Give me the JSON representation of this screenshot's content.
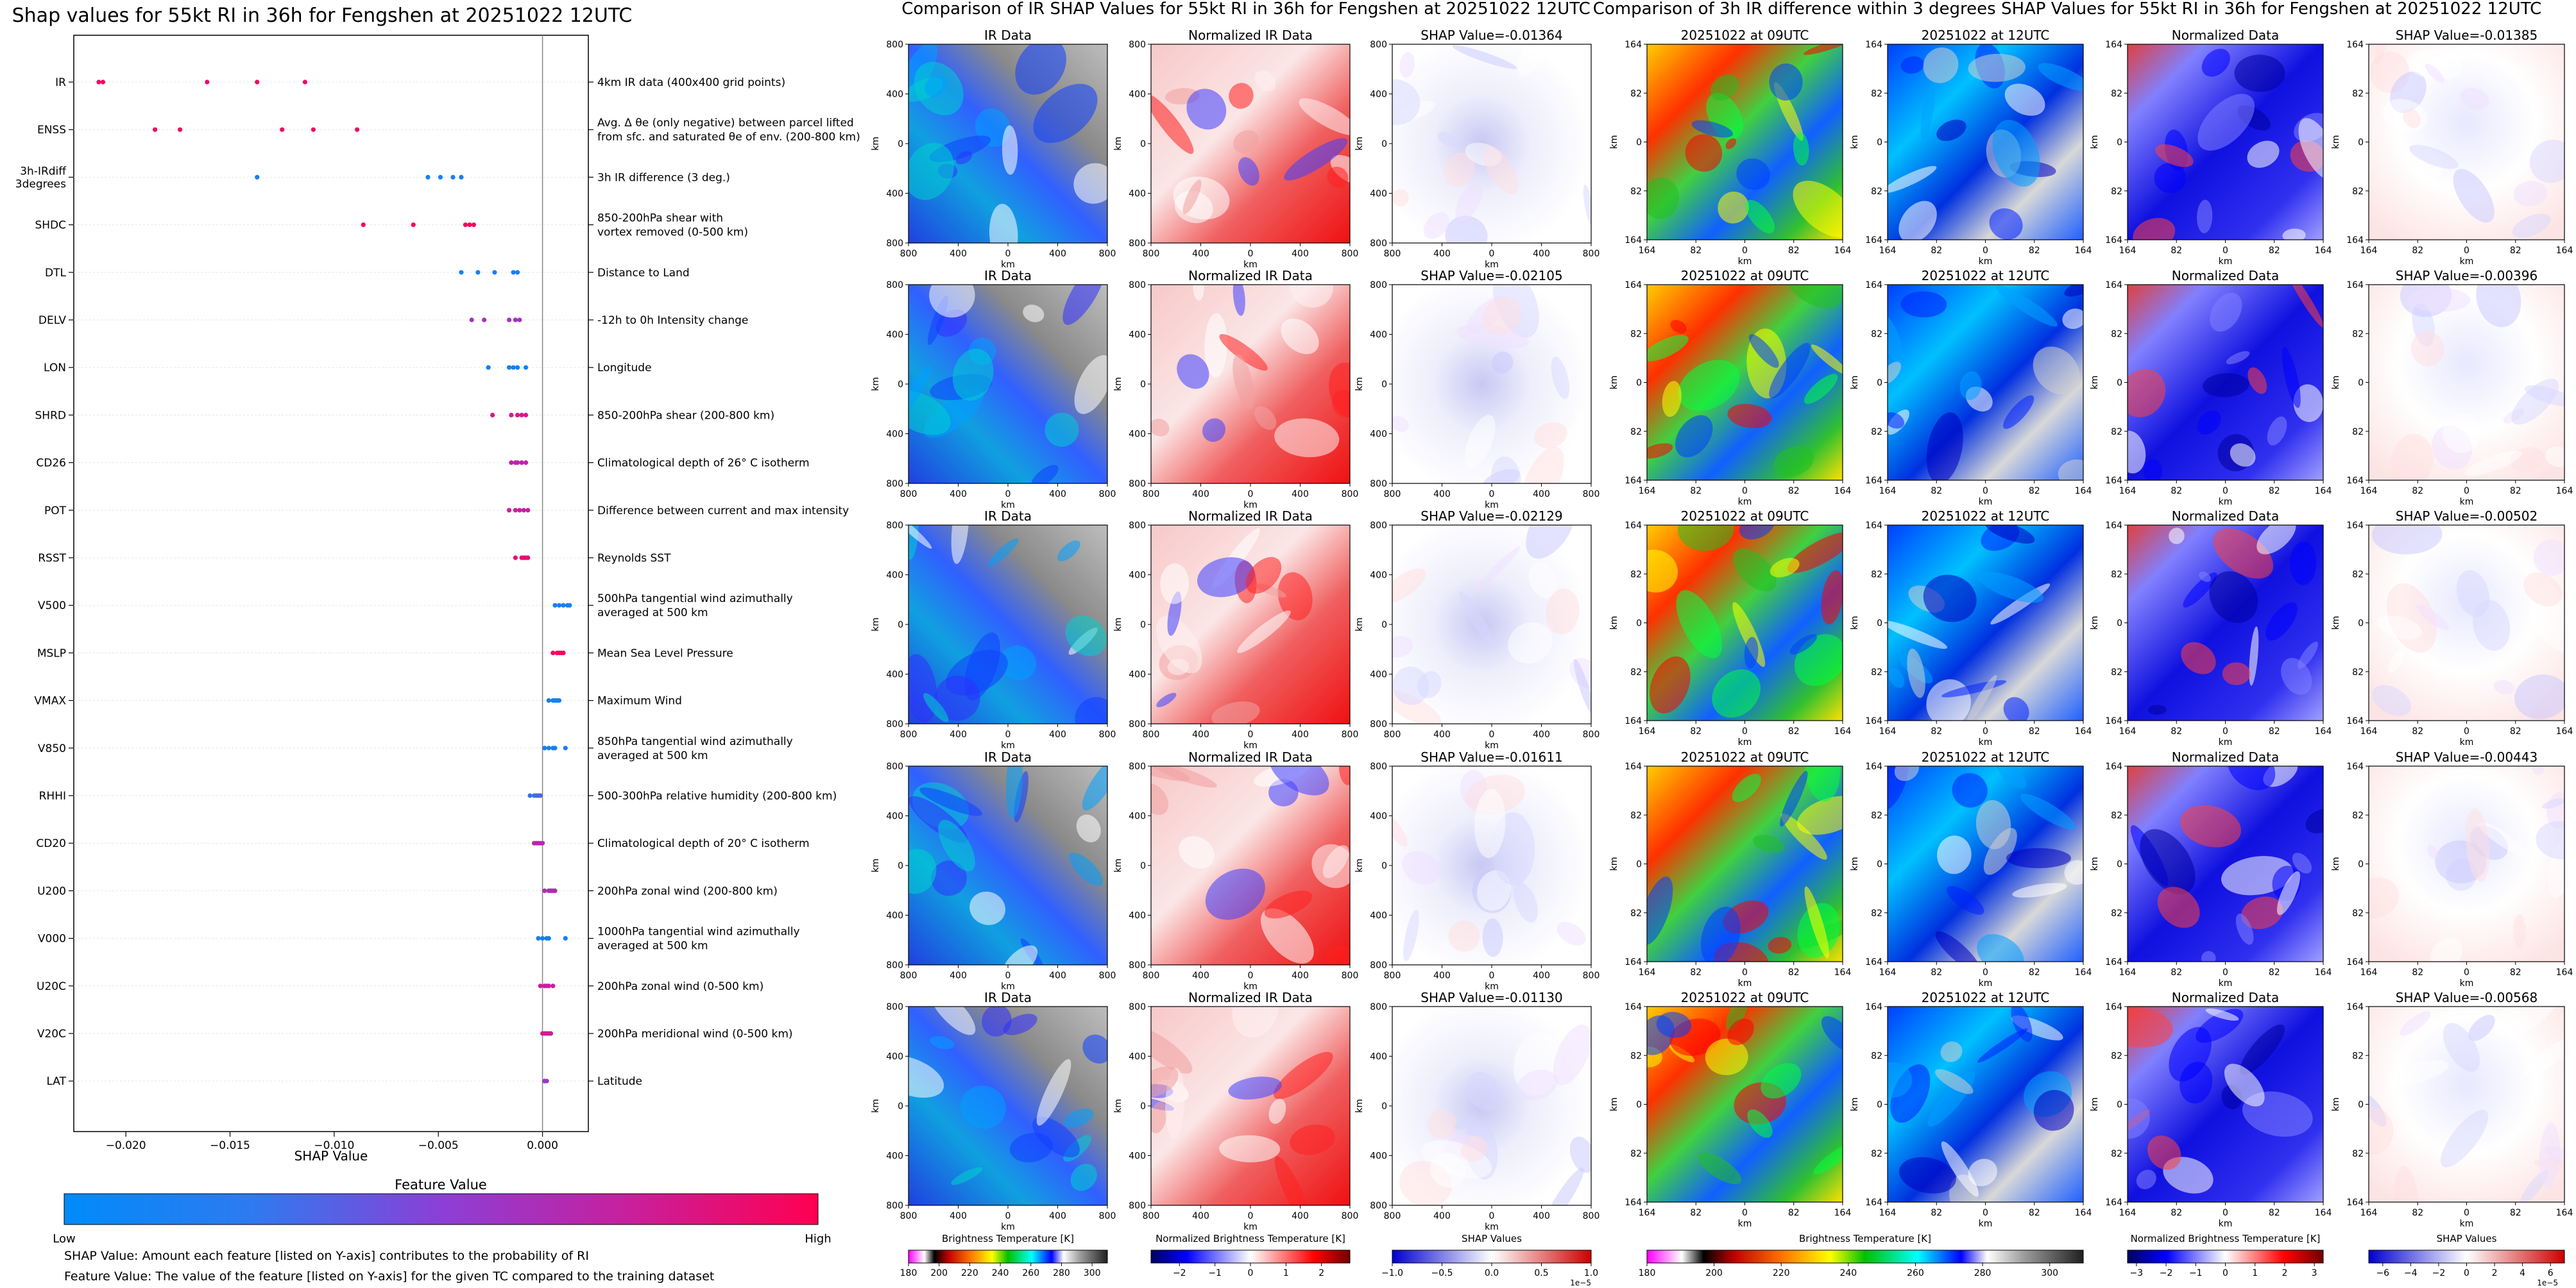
{
  "chart_data": [
    {
      "type": "scatter",
      "title": "Shap values for 55kt RI in 36h for Fengshen at 20251022 12UTC",
      "xlabel": "SHAP Value",
      "xlim": [
        -0.0225,
        0.0022
      ],
      "xticks": [
        {
          "v": -0.02,
          "label": "−0.020"
        },
        {
          "v": -0.015,
          "label": "−0.015"
        },
        {
          "v": -0.01,
          "label": "−0.010"
        },
        {
          "v": -0.005,
          "label": "−0.005"
        },
        {
          "v": 0.0,
          "label": "0.000"
        }
      ],
      "features": [
        {
          "name": "IR",
          "desc": [
            "4km IR data (400x400 grid points)"
          ],
          "points": [
            [
              -0.0213,
              0.95
            ],
            [
              -0.0211,
              0.95
            ],
            [
              -0.0161,
              0.92
            ],
            [
              -0.0137,
              0.95
            ],
            [
              -0.0114,
              0.95
            ]
          ]
        },
        {
          "name": "ENSS",
          "desc": [
            "Avg. Δ θe (only negative) between parcel lifted",
            "from sfc. and saturated θe of env. (200-800 km)"
          ],
          "points": [
            [
              -0.0186,
              0.95
            ],
            [
              -0.0174,
              0.95
            ],
            [
              -0.0125,
              0.95
            ],
            [
              -0.011,
              0.95
            ],
            [
              -0.0089,
              0.95
            ]
          ]
        },
        {
          "name": "3h-IRdiff 3degrees",
          "label_lines": [
            "3h-IRdiff",
            "3degrees"
          ],
          "desc": [
            "3h IR difference (3 deg.)"
          ],
          "points": [
            [
              -0.0137,
              0.1
            ],
            [
              -0.0055,
              0.1
            ],
            [
              -0.0049,
              0.1
            ],
            [
              -0.0043,
              0.1
            ],
            [
              -0.0039,
              0.1
            ]
          ]
        },
        {
          "name": "SHDC",
          "desc": [
            "850-200hPa shear with",
            "vortex removed (0-500 km)"
          ],
          "points": [
            [
              -0.0086,
              0.95
            ],
            [
              -0.0062,
              0.95
            ],
            [
              -0.0037,
              0.95
            ],
            [
              -0.0035,
              0.95
            ],
            [
              -0.0033,
              0.95
            ]
          ]
        },
        {
          "name": "DTL",
          "desc": [
            "Distance to Land"
          ],
          "points": [
            [
              -0.0039,
              0.1
            ],
            [
              -0.0031,
              0.1
            ],
            [
              -0.0023,
              0.1
            ],
            [
              -0.0014,
              0.1
            ],
            [
              -0.0012,
              0.1
            ]
          ]
        },
        {
          "name": "DELV",
          "desc": [
            "-12h to 0h Intensity change"
          ],
          "points": [
            [
              -0.0034,
              0.6
            ],
            [
              -0.0028,
              0.6
            ],
            [
              -0.0016,
              0.6
            ],
            [
              -0.0013,
              0.6
            ],
            [
              -0.0011,
              0.6
            ]
          ]
        },
        {
          "name": "LON",
          "desc": [
            "Longitude"
          ],
          "points": [
            [
              -0.0026,
              0.1
            ],
            [
              -0.0016,
              0.1
            ],
            [
              -0.0014,
              0.1
            ],
            [
              -0.0012,
              0.1
            ],
            [
              -0.0008,
              0.1
            ]
          ]
        },
        {
          "name": "SHRD",
          "desc": [
            "850-200hPa shear (200-800 km)"
          ],
          "points": [
            [
              -0.0024,
              0.85
            ],
            [
              -0.0015,
              0.8
            ],
            [
              -0.0012,
              0.8
            ],
            [
              -0.001,
              0.8
            ],
            [
              -0.0008,
              0.8
            ]
          ]
        },
        {
          "name": "CD26",
          "desc": [
            "Climatological depth of 26° C isotherm"
          ],
          "points": [
            [
              -0.0015,
              0.7
            ],
            [
              -0.0013,
              0.7
            ],
            [
              -0.0012,
              0.7
            ],
            [
              -0.001,
              0.7
            ],
            [
              -0.0008,
              0.7
            ]
          ]
        },
        {
          "name": "POT",
          "desc": [
            "Difference between current and max intensity"
          ],
          "points": [
            [
              -0.0016,
              0.75
            ],
            [
              -0.0013,
              0.75
            ],
            [
              -0.0011,
              0.75
            ],
            [
              -0.0009,
              0.75
            ],
            [
              -0.0007,
              0.75
            ]
          ]
        },
        {
          "name": "RSST",
          "desc": [
            "Reynolds SST"
          ],
          "points": [
            [
              -0.0013,
              0.9
            ],
            [
              -0.001,
              0.9
            ],
            [
              -0.0009,
              0.9
            ],
            [
              -0.0008,
              0.9
            ],
            [
              -0.0007,
              0.9
            ]
          ]
        },
        {
          "name": "V500",
          "desc": [
            "500hPa tangential wind azimuthally",
            "averaged at 500 km"
          ],
          "points": [
            [
              0.0006,
              0.1
            ],
            [
              0.0008,
              0.1
            ],
            [
              0.001,
              0.1
            ],
            [
              0.0012,
              0.1
            ],
            [
              0.0013,
              0.1
            ]
          ]
        },
        {
          "name": "MSLP",
          "desc": [
            "Mean Sea Level Pressure"
          ],
          "points": [
            [
              0.0005,
              0.95
            ],
            [
              0.0007,
              0.95
            ],
            [
              0.0008,
              0.95
            ],
            [
              0.0009,
              0.95
            ],
            [
              0.001,
              0.95
            ]
          ]
        },
        {
          "name": "VMAX",
          "desc": [
            "Maximum Wind"
          ],
          "points": [
            [
              0.0003,
              0.1
            ],
            [
              0.0005,
              0.1
            ],
            [
              0.0006,
              0.1
            ],
            [
              0.0007,
              0.1
            ],
            [
              0.0008,
              0.1
            ]
          ]
        },
        {
          "name": "V850",
          "desc": [
            "850hPa tangential wind azimuthally",
            "averaged at 500 km"
          ],
          "points": [
            [
              0.0001,
              0.1
            ],
            [
              0.0003,
              0.1
            ],
            [
              0.0005,
              0.1
            ],
            [
              0.0006,
              0.1
            ],
            [
              0.0011,
              0.1
            ]
          ]
        },
        {
          "name": "RHHI",
          "desc": [
            "500-300hPa relative humidity (200-800 km)"
          ],
          "points": [
            [
              -0.0006,
              0.2
            ],
            [
              -0.0004,
              0.2
            ],
            [
              -0.0003,
              0.3
            ],
            [
              -0.0002,
              0.3
            ],
            [
              -0.0001,
              0.3
            ]
          ]
        },
        {
          "name": "CD20",
          "desc": [
            "Climatological depth of 20° C isotherm"
          ],
          "points": [
            [
              -0.0004,
              0.7
            ],
            [
              -0.0003,
              0.7
            ],
            [
              -0.0002,
              0.7
            ],
            [
              -0.0001,
              0.7
            ],
            [
              0.0,
              0.7
            ]
          ]
        },
        {
          "name": "U200",
          "desc": [
            "200hPa zonal wind (200-800 km)"
          ],
          "points": [
            [
              0.0001,
              0.65
            ],
            [
              0.0003,
              0.65
            ],
            [
              0.0004,
              0.65
            ],
            [
              0.0005,
              0.65
            ],
            [
              0.0006,
              0.65
            ]
          ]
        },
        {
          "name": "V000",
          "desc": [
            "1000hPa tangential wind azimuthally",
            "averaged at 500 km"
          ],
          "points": [
            [
              -0.0002,
              0.1
            ],
            [
              0.0,
              0.1
            ],
            [
              0.0002,
              0.1
            ],
            [
              0.0003,
              0.1
            ],
            [
              0.0011,
              0.1
            ]
          ]
        },
        {
          "name": "U20C",
          "desc": [
            "200hPa zonal wind (0-500 km)"
          ],
          "points": [
            [
              -0.0001,
              0.75
            ],
            [
              0.0001,
              0.75
            ],
            [
              0.0002,
              0.75
            ],
            [
              0.0003,
              0.75
            ],
            [
              0.0005,
              0.75
            ]
          ]
        },
        {
          "name": "V20C",
          "desc": [
            "200hPa meridional wind (0-500 km)"
          ],
          "points": [
            [
              0.0,
              0.8
            ],
            [
              0.0001,
              0.8
            ],
            [
              0.0002,
              0.8
            ],
            [
              0.0003,
              0.8
            ],
            [
              0.0004,
              0.8
            ]
          ]
        },
        {
          "name": "LAT",
          "desc": [
            "Latitude"
          ],
          "points": [
            [
              0.0001,
              0.55
            ],
            [
              0.0001,
              0.55
            ],
            [
              0.0002,
              0.55
            ]
          ]
        }
      ],
      "colorbar": {
        "title": "Feature Value",
        "low": "Low",
        "high": "High",
        "colors": [
          "#008bfa",
          "#3a6ee6",
          "#8b3fd6",
          "#c81fa0",
          "#ff0051"
        ]
      },
      "notes": [
        "SHAP Value: Amount each feature [listed on Y-axis] contributes to the probability of RI",
        "Feature Value: The value of the feature [listed on Y-axis] for the given TC compared to the training dataset"
      ]
    },
    {
      "type": "heatmap",
      "title": "Comparison of IR SHAP Values for 55kt RI in 36h for Fengshen at 20251022 12UTC",
      "columns": [
        {
          "kind": "ir",
          "ylabel": "km",
          "xlabel": "km",
          "xticks": [
            "800",
            "400",
            "0",
            "400",
            "800"
          ],
          "yticks": [
            "800",
            "400",
            "0",
            "400",
            "800"
          ]
        },
        {
          "kind": "nir",
          "ylabel": "km",
          "xlabel": "km",
          "xticks": [
            "800",
            "400",
            "0",
            "400",
            "800"
          ],
          "yticks": [
            "800",
            "400",
            "0",
            "400",
            "800"
          ]
        },
        {
          "kind": "shap",
          "ylabel": "km",
          "xlabel": "km",
          "xticks": [
            "800",
            "400",
            "0",
            "400",
            "800"
          ],
          "yticks": [
            "800",
            "400",
            "0",
            "400",
            "800"
          ]
        }
      ],
      "rows": [
        {
          "titles": [
            "IR Data",
            "Normalized IR Data",
            "SHAP Value=-0.01364"
          ],
          "shap_value": -0.01364
        },
        {
          "titles": [
            "IR Data",
            "Normalized IR Data",
            "SHAP Value=-0.02105"
          ],
          "shap_value": -0.02105
        },
        {
          "titles": [
            "IR Data",
            "Normalized IR Data",
            "SHAP Value=-0.02129"
          ],
          "shap_value": -0.02129
        },
        {
          "titles": [
            "IR Data",
            "Normalized IR Data",
            "SHAP Value=-0.01611"
          ],
          "shap_value": -0.01611
        },
        {
          "titles": [
            "IR Data",
            "Normalized IR Data",
            "SHAP Value=-0.01130"
          ],
          "shap_value": -0.0113
        }
      ],
      "colorbars": [
        {
          "label": "Brightness Temperature [K]",
          "ticks": [
            "180",
            "200",
            "220",
            "240",
            "260",
            "280",
            "300"
          ],
          "range": [
            180,
            310
          ]
        },
        {
          "label": "Normalized Brightness Temperature [K]",
          "ticks": [
            "−2",
            "−1",
            "0",
            "1",
            "2"
          ],
          "range": [
            -2.8,
            2.8
          ]
        },
        {
          "label": "SHAP Values",
          "ticks": [
            "−1.0",
            "−0.5",
            "0.0",
            "0.5",
            "1.0"
          ],
          "range": [
            -1.0,
            1.0
          ],
          "exponent": "1e−5"
        }
      ]
    },
    {
      "type": "heatmap",
      "title": "Comparison of 3h IR difference within 3 degrees SHAP Values for 55kt RI in 36h for Fengshen at 20251022 12UTC",
      "columns": [
        {
          "kind": "t1",
          "ylabel": "km",
          "xlabel": "km",
          "xticks": [
            "164",
            "82",
            "0",
            "82",
            "164"
          ],
          "yticks": [
            "164",
            "82",
            "0",
            "82",
            "164"
          ]
        },
        {
          "kind": "t2",
          "ylabel": "km",
          "xlabel": "km",
          "xticks": [
            "164",
            "82",
            "0",
            "82",
            "164"
          ],
          "yticks": [
            "164",
            "82",
            "0",
            "82",
            "164"
          ]
        },
        {
          "kind": "nd",
          "ylabel": "km",
          "xlabel": "km",
          "xticks": [
            "164",
            "82",
            "0",
            "82",
            "164"
          ],
          "yticks": [
            "164",
            "82",
            "0",
            "82",
            "164"
          ]
        },
        {
          "kind": "shap",
          "ylabel": "km",
          "xlabel": "km",
          "xticks": [
            "164",
            "82",
            "0",
            "82",
            "164"
          ],
          "yticks": [
            "164",
            "82",
            "0",
            "82",
            "164"
          ]
        }
      ],
      "rows": [
        {
          "titles": [
            "20251022 at 09UTC",
            "20251022 at 12UTC",
            "Normalized Data",
            "SHAP Value=-0.01385"
          ],
          "shap_value": -0.01385
        },
        {
          "titles": [
            "20251022 at 09UTC",
            "20251022 at 12UTC",
            "Normalized Data",
            "SHAP Value=-0.00396"
          ],
          "shap_value": -0.00396
        },
        {
          "titles": [
            "20251022 at 09UTC",
            "20251022 at 12UTC",
            "Normalized Data",
            "SHAP Value=-0.00502"
          ],
          "shap_value": -0.00502
        },
        {
          "titles": [
            "20251022 at 09UTC",
            "20251022 at 12UTC",
            "Normalized Data",
            "SHAP Value=-0.00443"
          ],
          "shap_value": -0.00443
        },
        {
          "titles": [
            "20251022 at 09UTC",
            "20251022 at 12UTC",
            "Normalized Data",
            "SHAP Value=-0.00568"
          ],
          "shap_value": -0.00568
        }
      ],
      "colorbars": [
        {
          "label": "Brightness Temperature [K]",
          "ticks": [
            "180",
            "200",
            "220",
            "240",
            "260",
            "280",
            "300"
          ],
          "range": [
            180,
            310
          ]
        },
        {
          "label": "Normalized Brightness Temperature [K]",
          "ticks": [
            "−3",
            "−2",
            "−1",
            "0",
            "1",
            "2",
            "3"
          ],
          "range": [
            -3.3,
            3.3
          ]
        },
        {
          "label": "SHAP Values",
          "ticks": [
            "−6",
            "−4",
            "−2",
            "0",
            "2",
            "4",
            "6"
          ],
          "range": [
            -7,
            7
          ],
          "exponent": "1e−5"
        }
      ]
    }
  ]
}
